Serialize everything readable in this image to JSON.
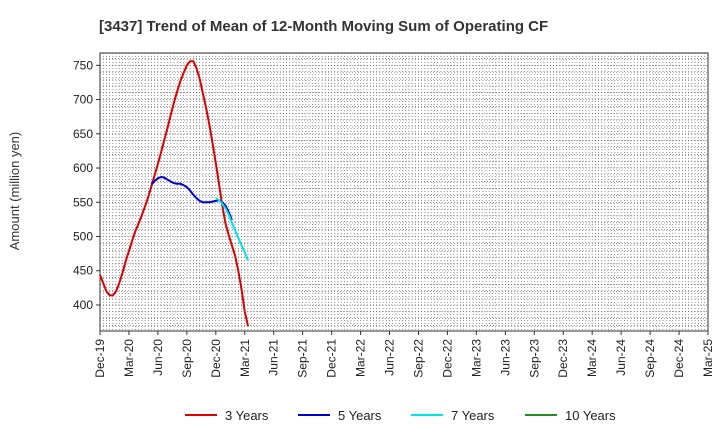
{
  "chart_data": {
    "type": "line",
    "title": "[3437]  Trend of Mean of 12-Month Moving Sum of Operating CF",
    "xlabel": "",
    "ylabel": "Amount (million yen)",
    "ylim": [
      362,
      768
    ],
    "yticks": [
      400,
      450,
      500,
      550,
      600,
      650,
      700,
      750
    ],
    "x_tick_labels": [
      "Dec-19",
      "Mar-20",
      "Jun-20",
      "Sep-20",
      "Dec-20",
      "Mar-21",
      "Jun-21",
      "Sep-21",
      "Dec-21",
      "Mar-22",
      "Jun-22",
      "Sep-22",
      "Dec-22",
      "Mar-23",
      "Jun-23",
      "Sep-23",
      "Dec-23",
      "Mar-24",
      "Jun-24",
      "Sep-24",
      "Dec-24",
      "Mar-25"
    ],
    "grid": true,
    "legend_position": "bottom",
    "series": [
      {
        "name": "3 Years",
        "color": "#dd0000",
        "start_index": 0,
        "values": [
          444,
          432,
          420,
          414,
          414,
          420,
          432,
          447,
          464,
          479,
          494,
          508,
          519,
          531,
          544,
          558,
          574,
          590,
          606,
          623,
          641,
          659,
          678,
          696,
          712,
          727,
          739,
          750,
          756,
          756,
          746,
          730,
          709,
          687,
          663,
          636,
          607,
          577,
          546,
          519,
          502,
          487,
          472,
          450,
          423,
          390,
          369
        ]
      },
      {
        "name": "5 Years",
        "color": "#0000cc",
        "start_index": 16,
        "values": [
          576,
          581,
          585,
          587,
          586,
          583,
          580,
          578,
          577,
          577,
          575,
          572,
          567,
          561,
          556,
          552,
          550,
          550,
          550,
          551,
          552,
          553,
          550,
          545,
          536,
          524
        ]
      },
      {
        "name": "7 Years",
        "color": "#00e5e5",
        "start_index": 36,
        "values": [
          556,
          553,
          548,
          541,
          532,
          520,
          509,
          498,
          487,
          477,
          465
        ]
      },
      {
        "name": "10 Years",
        "color": "#228b22",
        "start_index": 0,
        "values": []
      }
    ]
  }
}
